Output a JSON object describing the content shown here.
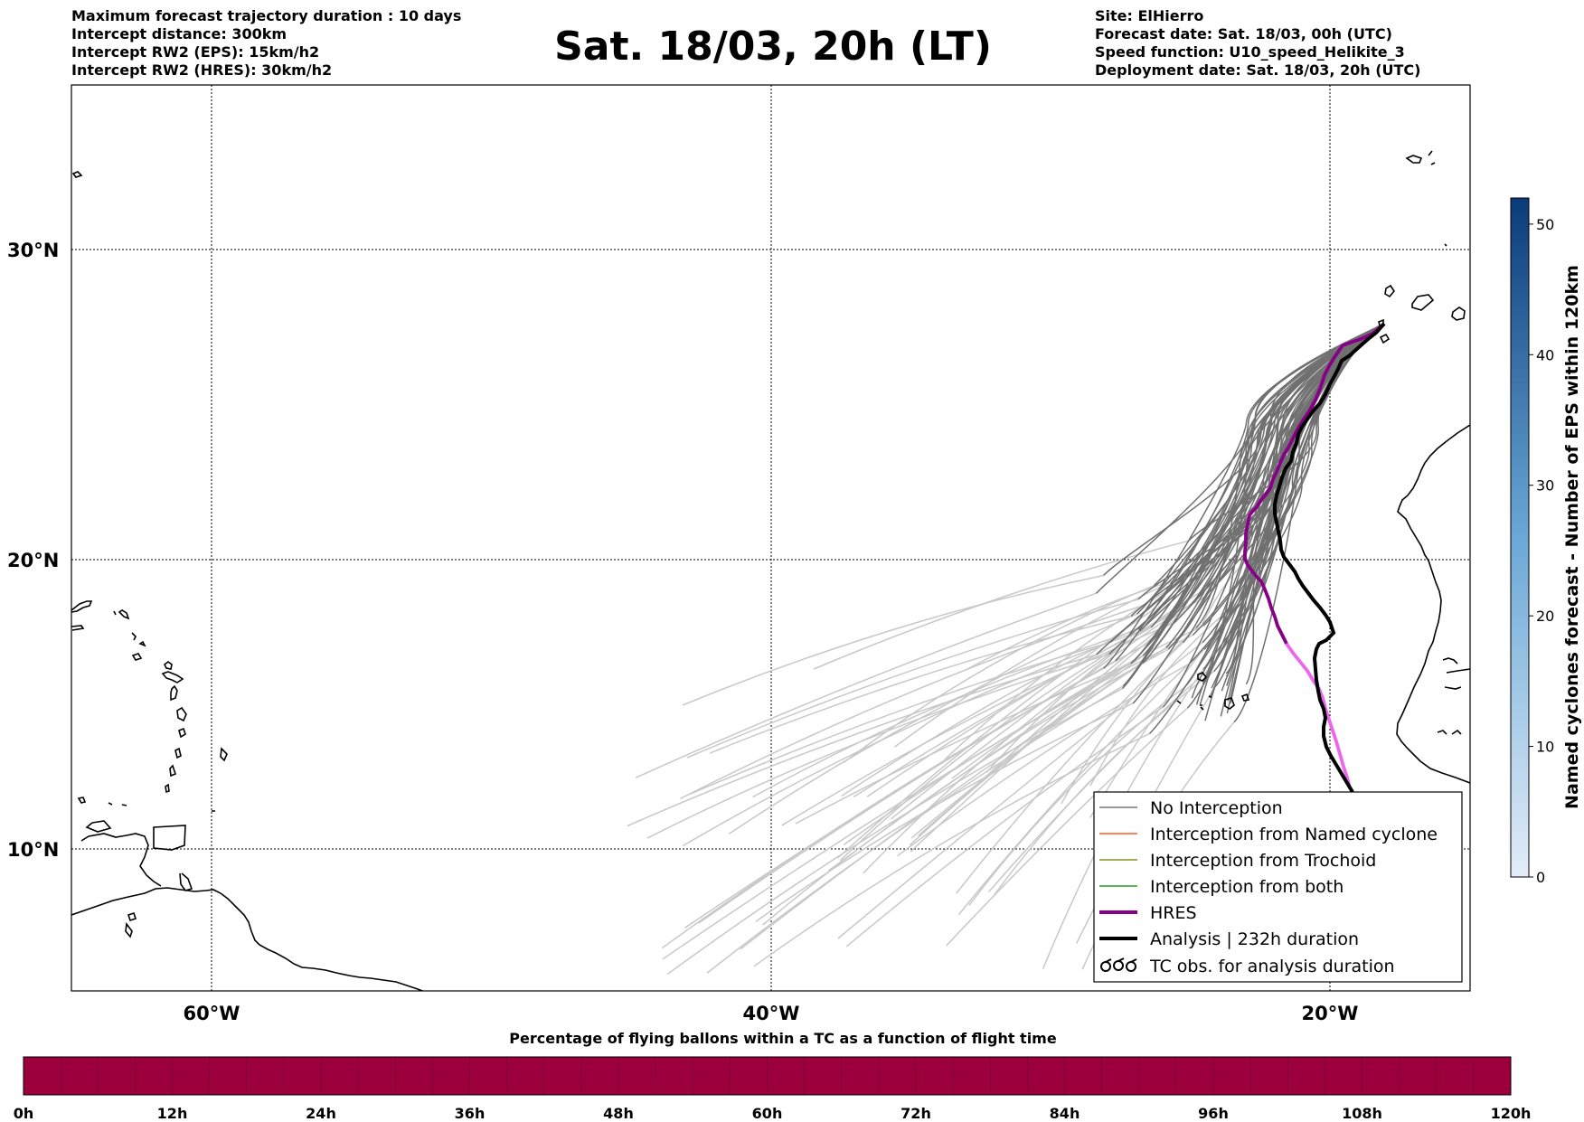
{
  "title": "Sat. 18/03, 20h (LT)",
  "info_left": [
    "Maximum forecast trajectory duration : 10 days",
    "Intercept distance: 300km",
    "Intercept RW2 (EPS):  15km/h2",
    "Intercept RW2 (HRES): 30km/h2"
  ],
  "info_right": [
    "Site: ElHierro",
    "Forecast date: Sat. 18/03, 00h (UTC)",
    "Speed function: U10_speed_Helikite_3",
    "Deployment date: Sat. 18/03, 20h (UTC)"
  ],
  "map": {
    "lat_labels": [
      "30°N",
      "20°N",
      "10°N"
    ],
    "lon_labels": [
      "60°W",
      "40°W",
      "20°W"
    ]
  },
  "legend": {
    "items": [
      {
        "label": "No Interception",
        "color": "#777777"
      },
      {
        "label": "Interception from Named cyclone",
        "color": "#ff5a1e"
      },
      {
        "label": "Interception from Trochoid",
        "color": "#8c8c28"
      },
      {
        "label": "Interception from both",
        "color": "#2a9a2a"
      },
      {
        "label": "HRES",
        "color": "#880088"
      },
      {
        "label": "Analysis | 232h duration",
        "color": "#000000"
      },
      {
        "label": "TC obs. for analysis duration",
        "color": "#000000"
      }
    ]
  },
  "colorbar_right": {
    "label": "Named cyclones forecast - Number of EPS within 120km",
    "ticks": [
      "0",
      "10",
      "20",
      "30",
      "40",
      "50"
    ],
    "max": 52,
    "color_low": "#e3edf8",
    "color_high": "#0a3b7a"
  },
  "colorbar_bottom": {
    "title": "Percentage of flying ballons within a TC as a function of flight time",
    "ticks": [
      "0h",
      "12h",
      "24h",
      "36h",
      "48h",
      "60h",
      "72h",
      "84h",
      "96h",
      "108h",
      "120h"
    ],
    "color": "#9c003c"
  },
  "colors": {
    "hres_early": "#880088",
    "hres_late": "#ee66ee",
    "analysis": "#000000",
    "eps_dark": "#707070",
    "eps_light": "#c8c8c8"
  }
}
